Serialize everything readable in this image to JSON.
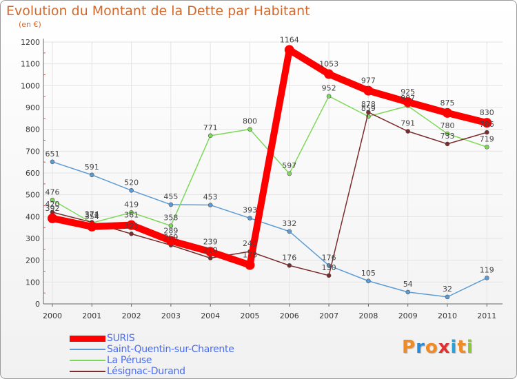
{
  "chart_data": {
    "type": "line",
    "title": "Evolution du Montant de la Dette par Habitant",
    "ylabel": "(en €)",
    "xlabel": "",
    "categories": [
      "2000",
      "2001",
      "2002",
      "2003",
      "2004",
      "2005",
      "2006",
      "2007",
      "2008",
      "2009",
      "2010",
      "2011"
    ],
    "ylim": [
      0,
      1200
    ],
    "yticks": [
      0,
      100,
      200,
      300,
      400,
      500,
      600,
      700,
      800,
      900,
      1000,
      1100,
      1200
    ],
    "grid": true,
    "legend_position": "bottom-left",
    "series": [
      {
        "name": "SURIS",
        "color": "#ff0000",
        "style": "bold",
        "values": [
          392,
          354,
          361,
          289,
          239,
          178,
          1164,
          1053,
          977,
          925,
          875,
          830
        ]
      },
      {
        "name": "Saint-Quentin-sur-Charente",
        "color": "#5b9bd5",
        "style": "thin",
        "values": [
          651,
          591,
          520,
          455,
          453,
          393,
          332,
          176,
          105,
          54,
          32,
          119
        ]
      },
      {
        "name": "La Péruse",
        "color": "#7dd858",
        "style": "thin",
        "values": [
          476,
          371,
          419,
          358,
          771,
          800,
          597,
          952,
          859,
          907,
          780,
          719
        ]
      },
      {
        "name": "Lésignac-Durand",
        "color": "#7a2b2b",
        "style": "thin",
        "values": [
          420,
          374,
          321,
          269,
          210,
          240,
          176,
          130,
          878,
          791,
          733,
          786
        ]
      }
    ]
  },
  "logo": {
    "letters": [
      "P",
      "r",
      "o",
      "x",
      "i",
      "t",
      "i"
    ],
    "colors": [
      "#f08a24",
      "#2a8ad8",
      "#f08a24",
      "#e23030",
      "#2aa0d8",
      "#f08a24",
      "#8cc63f"
    ]
  }
}
